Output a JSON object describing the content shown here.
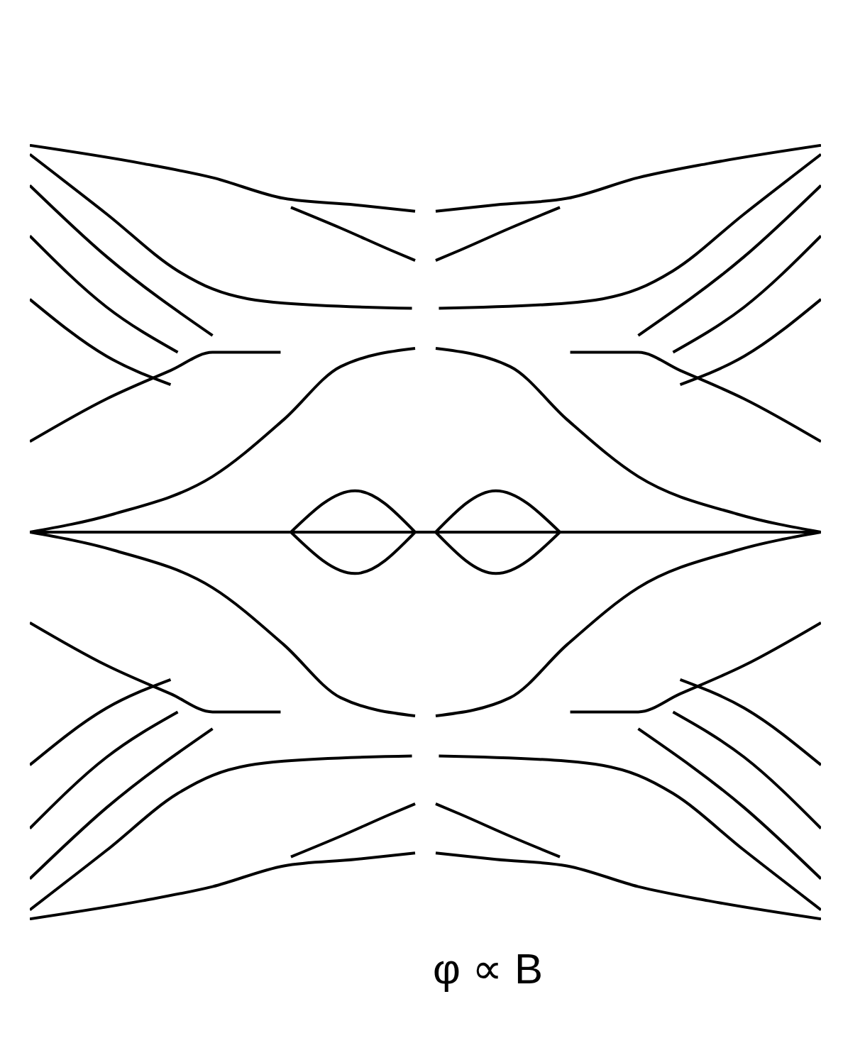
{
  "chart_data": {
    "type": "line",
    "xlabel": "φ ∝ B",
    "color": "#000000",
    "xlim": [
      0,
      1
    ],
    "ylim": [
      -3,
      3
    ],
    "xticks": [],
    "yticks": [],
    "tick_labels": false,
    "grid": false,
    "series": [
      {
        "x": [
          0,
          0.142,
          0.231,
          0.321,
          0.411,
          0.487
        ],
        "values": [
          2.99,
          2.85,
          2.74,
          2.58,
          2.53,
          2.48
        ]
      },
      {
        "x": [
          0,
          0.097,
          0.187,
          0.231,
          0.321,
          0.483
        ],
        "values": [
          2.92,
          2.46,
          2.02,
          1.88,
          1.77,
          1.73
        ]
      },
      {
        "x": [
          0.33,
          0.393,
          0.456,
          0.487
        ],
        "values": [
          2.51,
          2.35,
          2.18,
          2.1
        ]
      },
      {
        "x": [
          0,
          0.097,
          0.231
        ],
        "values": [
          2.68,
          2.13,
          1.52
        ]
      },
      {
        "x": [
          0,
          0.097,
          0.187
        ],
        "values": [
          2.29,
          1.74,
          1.39
        ]
      },
      {
        "x": [
          0,
          0.097,
          0.178
        ],
        "values": [
          1.8,
          1.36,
          1.14
        ]
      },
      {
        "x": [
          0,
          0.097,
          0.178,
          0.231,
          0.317
        ],
        "values": [
          0.7,
          1.03,
          1.25,
          1.39,
          1.39
        ]
      },
      {
        "x": [
          0,
          0.106,
          0.231,
          0.321,
          0.393,
          0.487
        ],
        "values": [
          0,
          0.14,
          0.43,
          0.87,
          1.28,
          1.42
        ]
      },
      {
        "x": [
          0.33,
          0.411,
          0.487
        ],
        "values": [
          0,
          0.32,
          0
        ]
      },
      {
        "x": [
          1,
          0.858,
          0.769,
          0.679,
          0.589,
          0.513
        ],
        "values": [
          2.99,
          2.85,
          2.74,
          2.58,
          2.53,
          2.48
        ]
      },
      {
        "x": [
          1,
          0.903,
          0.813,
          0.769,
          0.679,
          0.517
        ],
        "values": [
          2.92,
          2.46,
          2.02,
          1.88,
          1.77,
          1.73
        ]
      },
      {
        "x": [
          0.67,
          0.607,
          0.544,
          0.513
        ],
        "values": [
          2.51,
          2.35,
          2.18,
          2.1
        ]
      },
      {
        "x": [
          1,
          0.903,
          0.769
        ],
        "values": [
          2.68,
          2.13,
          1.52
        ]
      },
      {
        "x": [
          1,
          0.903,
          0.813
        ],
        "values": [
          2.29,
          1.74,
          1.39
        ]
      },
      {
        "x": [
          1,
          0.903,
          0.822
        ],
        "values": [
          1.8,
          1.36,
          1.14
        ]
      },
      {
        "x": [
          1,
          0.903,
          0.822,
          0.769,
          0.683
        ],
        "values": [
          0.7,
          1.03,
          1.25,
          1.39,
          1.39
        ]
      },
      {
        "x": [
          1,
          0.894,
          0.769,
          0.679,
          0.607,
          0.513
        ],
        "values": [
          0,
          0.14,
          0.43,
          0.87,
          1.28,
          1.42
        ]
      },
      {
        "x": [
          0.67,
          0.589,
          0.513
        ],
        "values": [
          0,
          0.32,
          0
        ]
      },
      {
        "x": [
          0,
          0.142,
          0.231,
          0.321,
          0.411,
          0.487
        ],
        "values": [
          -2.99,
          -2.85,
          -2.74,
          -2.58,
          -2.53,
          -2.48
        ]
      },
      {
        "x": [
          0,
          0.097,
          0.187,
          0.231,
          0.321,
          0.483
        ],
        "values": [
          -2.92,
          -2.46,
          -2.02,
          -1.88,
          -1.77,
          -1.73
        ]
      },
      {
        "x": [
          0.33,
          0.393,
          0.456,
          0.487
        ],
        "values": [
          -2.51,
          -2.35,
          -2.18,
          -2.1
        ]
      },
      {
        "x": [
          0,
          0.097,
          0.231
        ],
        "values": [
          -2.68,
          -2.13,
          -1.52
        ]
      },
      {
        "x": [
          0,
          0.097,
          0.187
        ],
        "values": [
          -2.29,
          -1.74,
          -1.39
        ]
      },
      {
        "x": [
          0,
          0.097,
          0.178
        ],
        "values": [
          -1.8,
          -1.36,
          -1.14
        ]
      },
      {
        "x": [
          0,
          0.097,
          0.178,
          0.231,
          0.317
        ],
        "values": [
          -0.7,
          -1.03,
          -1.25,
          -1.39,
          -1.39
        ]
      },
      {
        "x": [
          0,
          0.106,
          0.231,
          0.321,
          0.393,
          0.487
        ],
        "values": [
          0,
          -0.14,
          -0.43,
          -0.87,
          -1.28,
          -1.42
        ]
      },
      {
        "x": [
          0.33,
          0.411,
          0.487
        ],
        "values": [
          0,
          -0.32,
          0
        ]
      },
      {
        "x": [
          1,
          0.858,
          0.769,
          0.679,
          0.589,
          0.513
        ],
        "values": [
          -2.99,
          -2.85,
          -2.74,
          -2.58,
          -2.53,
          -2.48
        ]
      },
      {
        "x": [
          1,
          0.903,
          0.813,
          0.769,
          0.679,
          0.517
        ],
        "values": [
          -2.92,
          -2.46,
          -2.02,
          -1.88,
          -1.77,
          -1.73
        ]
      },
      {
        "x": [
          0.67,
          0.607,
          0.544,
          0.513
        ],
        "values": [
          -2.51,
          -2.35,
          -2.18,
          -2.1
        ]
      },
      {
        "x": [
          1,
          0.903,
          0.769
        ],
        "values": [
          -2.68,
          -2.13,
          -1.52
        ]
      },
      {
        "x": [
          1,
          0.903,
          0.813
        ],
        "values": [
          -2.29,
          -1.74,
          -1.39
        ]
      },
      {
        "x": [
          1,
          0.903,
          0.822
        ],
        "values": [
          -1.8,
          -1.36,
          -1.14
        ]
      },
      {
        "x": [
          1,
          0.903,
          0.822,
          0.769,
          0.683
        ],
        "values": [
          -0.7,
          -1.03,
          -1.25,
          -1.39,
          -1.39
        ]
      },
      {
        "x": [
          1,
          0.894,
          0.769,
          0.679,
          0.607,
          0.513
        ],
        "values": [
          0,
          -0.14,
          -0.43,
          -0.87,
          -1.28,
          -1.42
        ]
      },
      {
        "x": [
          0.67,
          0.589,
          0.513
        ],
        "values": [
          0,
          -0.32,
          0
        ]
      },
      {
        "x": [
          0,
          1
        ],
        "values": [
          0,
          0
        ]
      }
    ]
  }
}
